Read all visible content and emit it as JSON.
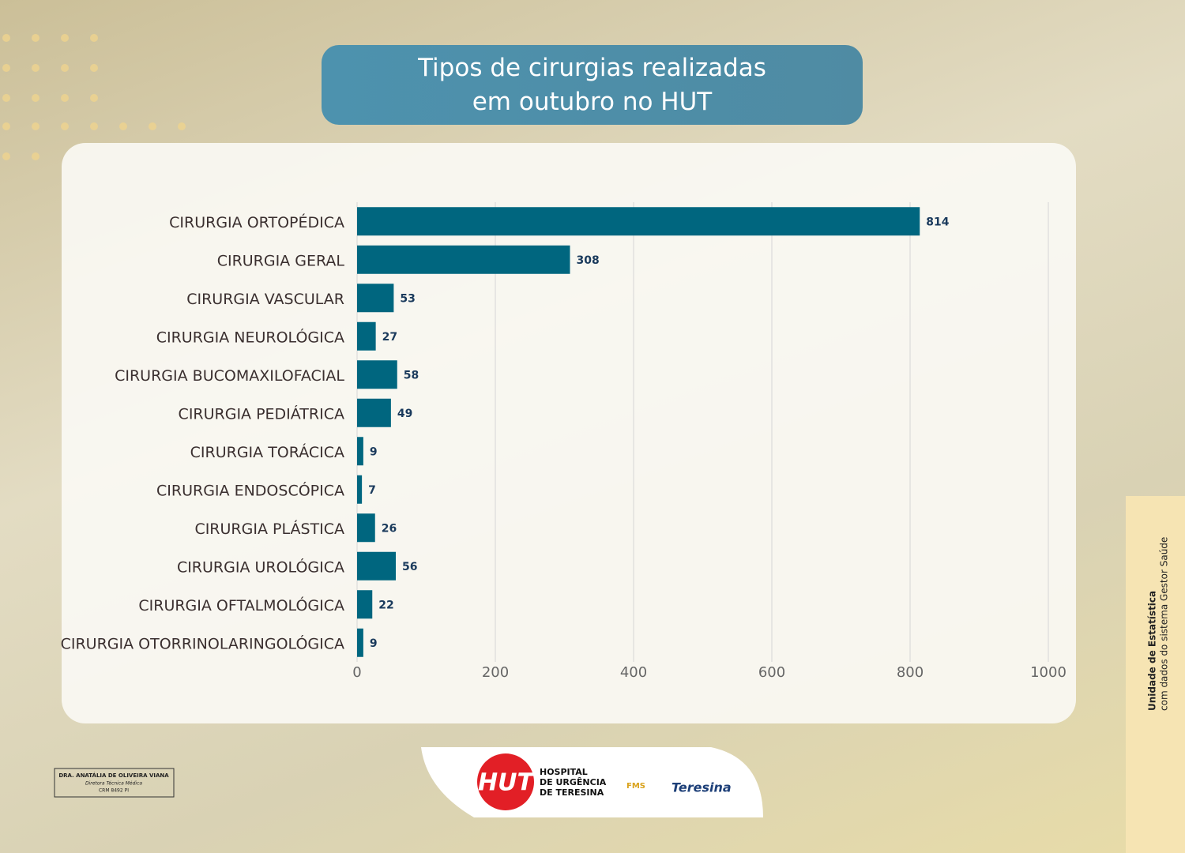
{
  "chart_data": {
    "type": "bar",
    "orientation": "horizontal",
    "title": "Tipos de cirurgias realizadas em outubro no HUT",
    "categories": [
      "CIRURGIA ORTOPÉDICA",
      "CIRURGIA GERAL",
      "CIRURGIA VASCULAR",
      "CIRURGIA NEUROLÓGICA",
      "CIRURGIA BUCOMAXILOFACIAL",
      "CIRURGIA PEDIÁTRICA",
      "CIRURGIA TORÁCICA",
      "CIRURGIA ENDOSCÓPICA",
      "CIRURGIA PLÁSTICA",
      "CIRURGIA UROLÓGICA",
      "CIRURGIA OFTALMOLÓGICA",
      "CIRURGIA OTORRINOLARINGOLÓGICA"
    ],
    "values": [
      814,
      308,
      53,
      27,
      58,
      49,
      9,
      7,
      26,
      56,
      22,
      9
    ],
    "color": "#00667f",
    "xlim": [
      0,
      1000
    ],
    "xticks": [
      0,
      200,
      400,
      600,
      800,
      1000
    ],
    "grid": true
  },
  "side_note": {
    "title": "Unidade de Estatística",
    "text": "com dados do sistema Gestor Saúde"
  },
  "signature": {
    "name": "DRA. ANATÁLIA DE OLIVEIRA VIANA",
    "role": "Diretora Técnica Médica",
    "crm": "CRM 8492 PI"
  },
  "logos": {
    "hut": "HUT",
    "hospital": [
      "HOSPITAL",
      "DE URGÊNCIA",
      "DE TERESINA"
    ],
    "fms": "FMS",
    "city": "Teresina"
  }
}
